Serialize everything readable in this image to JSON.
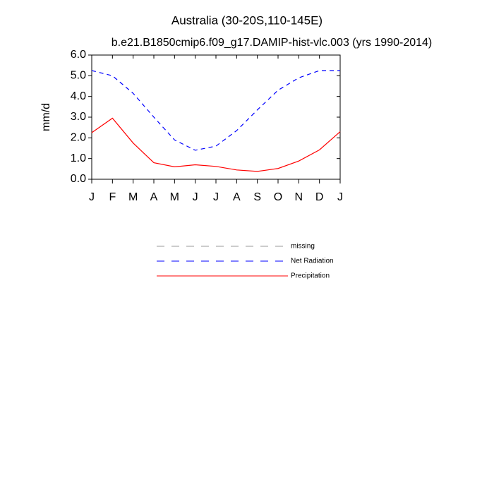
{
  "chart_data": {
    "type": "line",
    "title": "Australia (30-20S,110-145E)",
    "subtitle": "b.e21.B1850cmip6.f09_g17.DAMIP-hist-vlc.003 (yrs 1990-2014)",
    "ylabel": "mm/d",
    "categories": [
      "J",
      "F",
      "M",
      "A",
      "M",
      "J",
      "J",
      "A",
      "S",
      "O",
      "N",
      "D",
      "J"
    ],
    "ylim": [
      0,
      6
    ],
    "yticks": [
      {
        "value": 0,
        "label": "0.0"
      },
      {
        "value": 1,
        "label": "1.0"
      },
      {
        "value": 2,
        "label": "2.0"
      },
      {
        "value": 3,
        "label": "3.0"
      },
      {
        "value": 4,
        "label": "4.0"
      },
      {
        "value": 5,
        "label": "5.0"
      },
      {
        "value": 6,
        "label": "6.0"
      }
    ],
    "series": [
      {
        "name": "missing",
        "color": "#999999",
        "dashed": true,
        "values": [
          null,
          null,
          null,
          null,
          null,
          null,
          null,
          null,
          null,
          null,
          null,
          null,
          null
        ]
      },
      {
        "name": "Net Radiation",
        "color": "#0000ff",
        "dashed": true,
        "values": [
          5.25,
          5.0,
          4.15,
          3.0,
          1.9,
          1.4,
          1.6,
          2.35,
          3.35,
          4.3,
          4.9,
          5.25,
          5.25
        ]
      },
      {
        "name": "Precipitation",
        "color": "#ff0000",
        "dashed": false,
        "values": [
          2.25,
          2.95,
          1.75,
          0.8,
          0.6,
          0.7,
          0.62,
          0.45,
          0.38,
          0.52,
          0.88,
          1.42,
          2.3
        ]
      }
    ]
  }
}
